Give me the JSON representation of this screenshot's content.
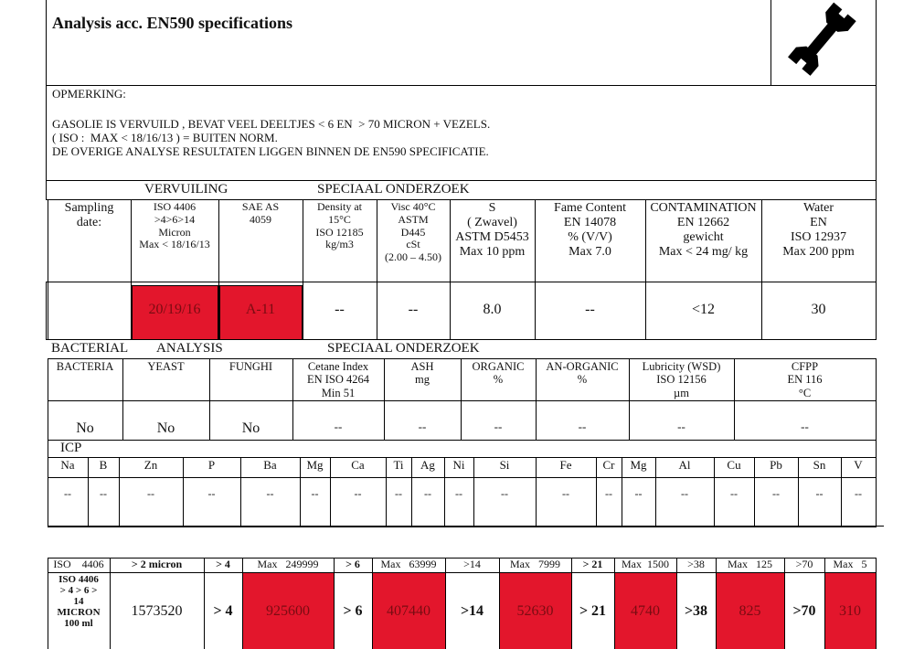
{
  "header": {
    "title": "Analysis acc. EN590 specifications"
  },
  "remark": {
    "label": "OPMERKING:",
    "lines": [
      "GASOLIE IS VERVUILD , BEVAT VEEL DEELTJES < 6 EN  > 70 MICRON + VEZELS.",
      "( ISO :  MAX < 18/16/13 ) = BUITEN NORM.",
      "DE OVERIGE ANALYSE RESULTATEN LIGGEN BINNEN DE EN590 SPECIFICATIE."
    ]
  },
  "section1": {
    "group_labels": [
      "VERVUILING",
      "SPECIAAL ONDERZOEK"
    ],
    "headers": [
      [
        "Sampling",
        "date:"
      ],
      [
        "ISO 4406",
        ">4>6>14",
        "Micron",
        "Max < 18/16/13"
      ],
      [
        "SAE AS",
        "4059"
      ],
      [
        "Density at",
        "15°C",
        "ISO 12185",
        "kg/m3"
      ],
      [
        "Visc 40°C",
        "ASTM",
        "D445",
        "cSt",
        "(2.00 – 4.50)"
      ],
      [
        "S",
        "( Zwavel)",
        "ASTM D5453",
        "Max 10 ppm"
      ],
      [
        "Fame Content",
        "EN 14078",
        "% (V/V)",
        "Max 7.0"
      ],
      [
        "CONTAMINATION",
        "EN 12662",
        "gewicht",
        "Max < 24 mg/ kg"
      ],
      [
        "Water",
        "EN",
        "ISO 12937",
        "Max 200 ppm"
      ]
    ],
    "values": [
      null,
      "20/19/16",
      "A-11",
      "--",
      "--",
      "8.0",
      "--",
      "<12",
      "30"
    ]
  },
  "section2": {
    "group_labels": [
      "BACTERIAL",
      "ANALYSIS",
      "SPECIAAL ONDERZOEK"
    ],
    "headers": [
      [
        "BACTERIA"
      ],
      [
        "YEAST"
      ],
      [
        "FUNGHI"
      ],
      [
        "Cetane Index",
        "EN ISO 4264",
        "Min 51"
      ],
      [
        "ASH",
        "mg"
      ],
      [
        "ORGANIC",
        "%"
      ],
      [
        "AN-ORGANIC",
        "%"
      ],
      [
        "Lubricity (WSD)",
        "ISO 12156",
        "µm"
      ],
      [
        "CFPP",
        "EN 116",
        "°C"
      ]
    ],
    "values": [
      "No",
      "No",
      "No",
      "--",
      "--",
      "--",
      "--",
      "--",
      "--"
    ]
  },
  "icp": {
    "label": "ICP",
    "headers": [
      "Na",
      "B",
      "Zn",
      "P",
      "Ba",
      "Mg",
      "Ca",
      "Ti",
      "Ag",
      "Ni",
      "Si",
      "Fe",
      "Cr",
      "Mg",
      "Al",
      "Cu",
      "Pb",
      "Sn",
      "V"
    ],
    "values": [
      "--",
      "--",
      "--",
      "--",
      "--",
      "--",
      "--",
      "--",
      "--",
      "--",
      "--",
      "--",
      "--",
      "--",
      "--",
      "--",
      "--",
      "--",
      "--"
    ]
  },
  "particles": {
    "headers": [
      "ISO    4406",
      "> 2 micron",
      "> 4",
      "Max   249999",
      "> 6",
      "Max   63999",
      ">14",
      "Max   7999",
      "> 21",
      "Max  1500",
      ">38",
      "Max   125",
      ">70",
      "Max   5"
    ],
    "values": [
      [
        "ISO 4406",
        "> 4 > 6 >",
        "14",
        "MICRON",
        "100 ml"
      ],
      "1573520",
      "> 4",
      "925600",
      "> 6",
      "407440",
      ">14",
      "52630",
      "> 21",
      "4740",
      ">38",
      "825",
      ">70",
      "310"
    ]
  }
}
